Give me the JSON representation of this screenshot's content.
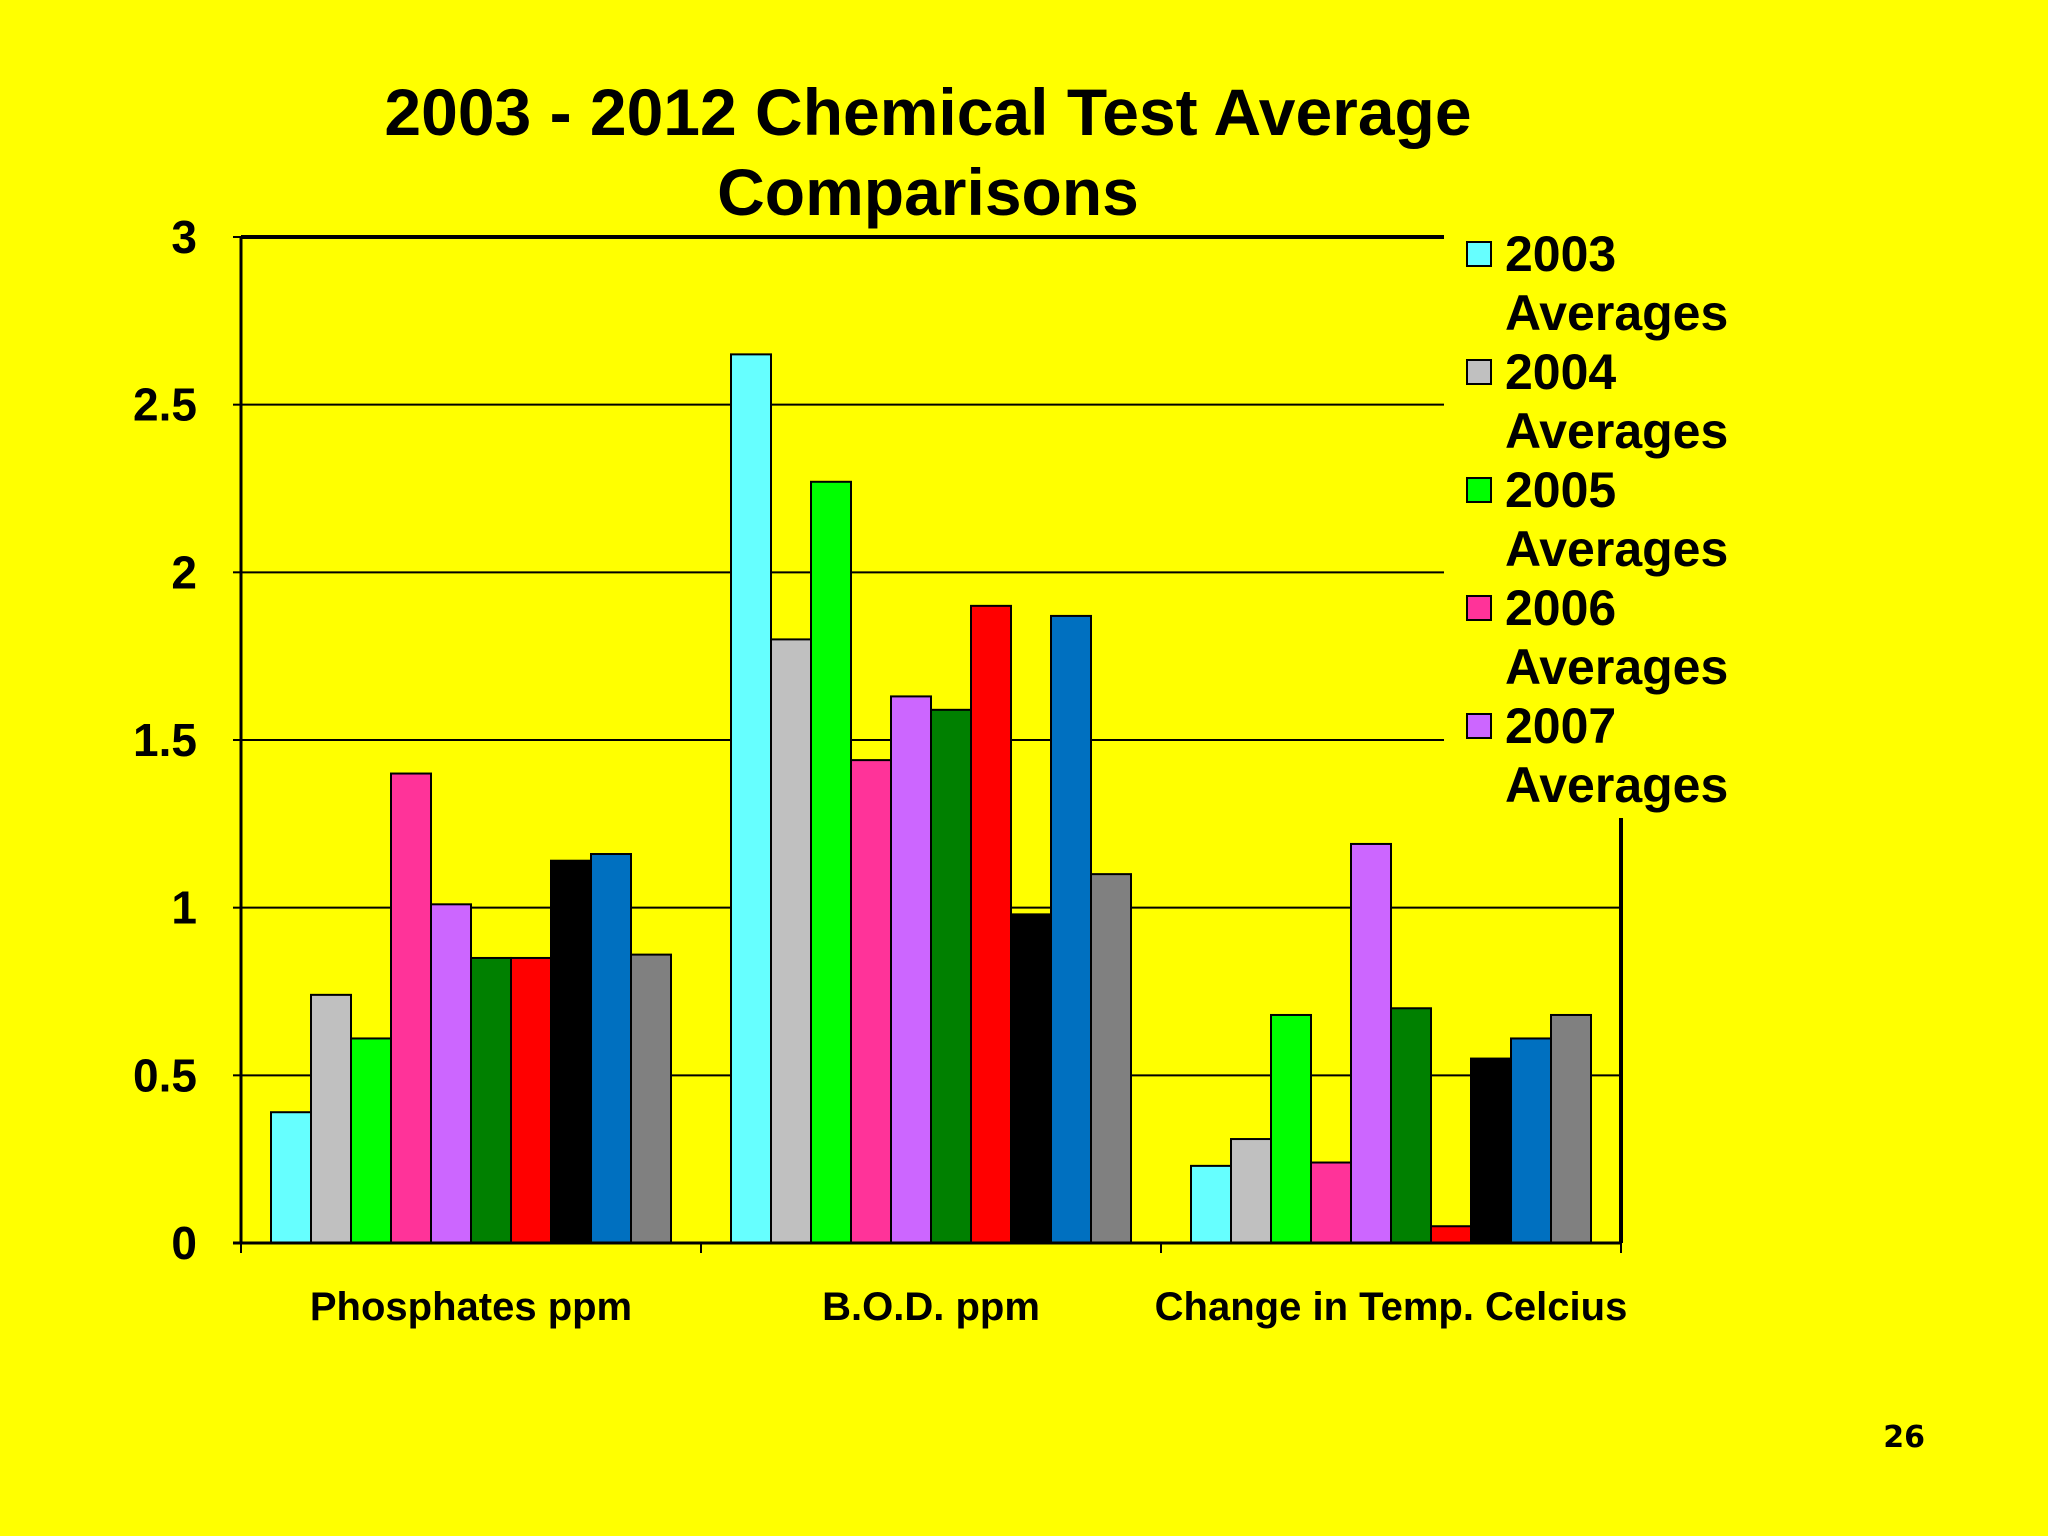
{
  "page": {
    "number": "26"
  },
  "chart_data": {
    "type": "bar",
    "title": [
      "2003 - 2012 Chemical Test Average",
      "Comparisons"
    ],
    "xlabel": "",
    "ylabel": "",
    "ylim": [
      0,
      3
    ],
    "yticks": [
      "0",
      "0.5",
      "1",
      "1.5",
      "2",
      "2.5",
      "3"
    ],
    "ytick_values": [
      0,
      0.5,
      1,
      1.5,
      2,
      2.5,
      3
    ],
    "grid": true,
    "legend_position": "right",
    "categories": [
      "Phosphates ppm",
      "B.O.D. ppm",
      "Change in Temp. Celcius"
    ],
    "series": [
      {
        "name": "2003 Averages",
        "color": "#66ffff",
        "values": [
          0.39,
          2.65,
          0.23
        ],
        "legend": [
          "2003",
          "Averages"
        ]
      },
      {
        "name": "2004 Averages",
        "color": "#c0c0c0",
        "values": [
          0.74,
          1.8,
          0.31
        ],
        "legend": [
          "2004",
          "Averages"
        ]
      },
      {
        "name": "2005 Averages",
        "color": "#00ff00",
        "values": [
          0.61,
          2.27,
          0.68
        ],
        "legend": [
          "2005",
          "Averages"
        ]
      },
      {
        "name": "2006 Averages",
        "color": "#ff3399",
        "values": [
          1.4,
          1.44,
          0.24
        ],
        "legend": [
          "2006",
          "Averages"
        ]
      },
      {
        "name": "2007 Averages",
        "color": "#cc66ff",
        "values": [
          1.01,
          1.63,
          1.19
        ],
        "legend": [
          "2007",
          "Averages"
        ]
      },
      {
        "color": "#008000",
        "values": [
          0.85,
          1.59,
          0.7
        ]
      },
      {
        "color": "#ff0000",
        "values": [
          0.85,
          1.9,
          0.05
        ]
      },
      {
        "color": "#000000",
        "values": [
          1.14,
          0.98,
          0.55
        ]
      },
      {
        "color": "#0070c0",
        "values": [
          1.16,
          1.87,
          0.61
        ]
      },
      {
        "color": "#808080",
        "values": [
          0.86,
          1.1,
          0.68
        ]
      }
    ]
  }
}
